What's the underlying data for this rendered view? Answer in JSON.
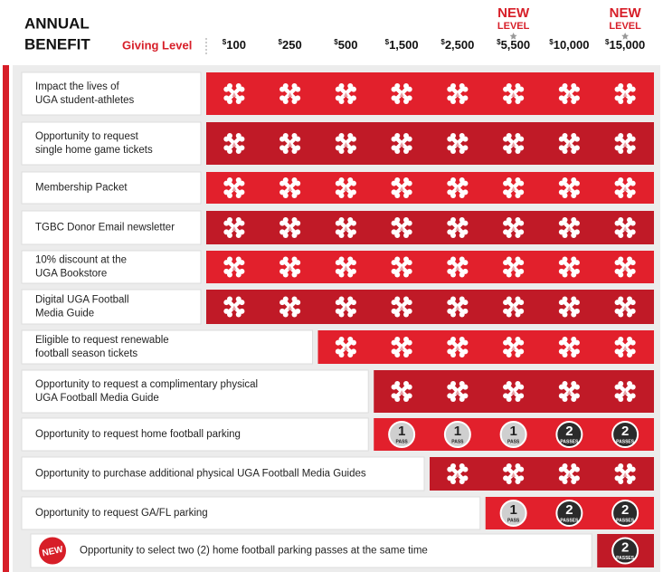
{
  "header": {
    "title": [
      "ANNUAL",
      "BENEFIT"
    ],
    "giving_level": "Giving Level",
    "columns": [
      {
        "currency": "$",
        "amount": "100",
        "badge": null
      },
      {
        "currency": "$",
        "amount": "250",
        "badge": null
      },
      {
        "currency": "$",
        "amount": "500",
        "badge": null
      },
      {
        "currency": "$",
        "amount": "1,500",
        "badge": null
      },
      {
        "currency": "$",
        "amount": "2,500",
        "badge": null
      },
      {
        "currency": "$",
        "amount": "5,500",
        "badge": [
          "NEW",
          "LEVEL"
        ]
      },
      {
        "currency": "$",
        "amount": "10,000",
        "badge": null
      },
      {
        "currency": "$",
        "amount": "15,000",
        "badge": [
          "NEW",
          "LEVEL"
        ]
      }
    ]
  },
  "table": {
    "rows": [
      {
        "label": [
          "Impact the lives of",
          "UGA student-athletes"
        ],
        "new": null,
        "cells": [
          true,
          true,
          true,
          true,
          true,
          true,
          true,
          true
        ]
      },
      {
        "label": [
          "Opportunity to request",
          "single home game tickets"
        ],
        "new": null,
        "cells": [
          true,
          true,
          true,
          true,
          true,
          true,
          true,
          true
        ]
      },
      {
        "label": [
          "Membership Packet"
        ],
        "new": null,
        "cells": [
          true,
          true,
          true,
          true,
          true,
          true,
          true,
          true
        ]
      },
      {
        "label": [
          "TGBC Donor Email newsletter"
        ],
        "new": null,
        "cells": [
          true,
          true,
          true,
          true,
          true,
          true,
          true,
          true
        ]
      },
      {
        "label": [
          "10% discount at the",
          "UGA Bookstore"
        ],
        "new": null,
        "cells": [
          true,
          true,
          true,
          true,
          true,
          true,
          true,
          true
        ]
      },
      {
        "label": [
          "Digital UGA Football",
          "Media Guide"
        ],
        "new": null,
        "cells": [
          true,
          true,
          true,
          true,
          true,
          true,
          true,
          true
        ]
      },
      {
        "label": [
          "Eligible to request renewable",
          "football season tickets"
        ],
        "new": null,
        "cells": [
          null,
          null,
          true,
          true,
          true,
          true,
          true,
          true
        ]
      },
      {
        "label": [
          "Opportunity to request a complimentary physical",
          "UGA Football Media Guide"
        ],
        "new": null,
        "cells": [
          null,
          null,
          null,
          true,
          true,
          true,
          true,
          true
        ]
      },
      {
        "label": [
          "Opportunity to request home football parking"
        ],
        "new": null,
        "cells": [
          null,
          null,
          null,
          {
            "count": 1,
            "unit": "PASS"
          },
          {
            "count": 1,
            "unit": "PASS"
          },
          {
            "count": 1,
            "unit": "PASS"
          },
          {
            "count": 2,
            "unit": "PASSES"
          },
          {
            "count": 2,
            "unit": "PASSES"
          }
        ]
      },
      {
        "label": [
          "Opportunity to purchase additional physical UGA Football Media Guides"
        ],
        "new": null,
        "cells": [
          null,
          null,
          null,
          null,
          true,
          true,
          true,
          true
        ]
      },
      {
        "label": [
          "Opportunity to request GA/FL parking"
        ],
        "new": null,
        "cells": [
          null,
          null,
          null,
          null,
          null,
          {
            "count": 1,
            "unit": "PASS"
          },
          {
            "count": 2,
            "unit": "PASSES"
          },
          {
            "count": 2,
            "unit": "PASSES"
          }
        ]
      },
      {
        "label": [
          "Opportunity to select two (2) home football parking passes at the same time"
        ],
        "new": "NEW",
        "cells": [
          null,
          null,
          null,
          null,
          null,
          null,
          null,
          {
            "count": 2,
            "unit": "PASSES"
          }
        ]
      }
    ]
  }
}
